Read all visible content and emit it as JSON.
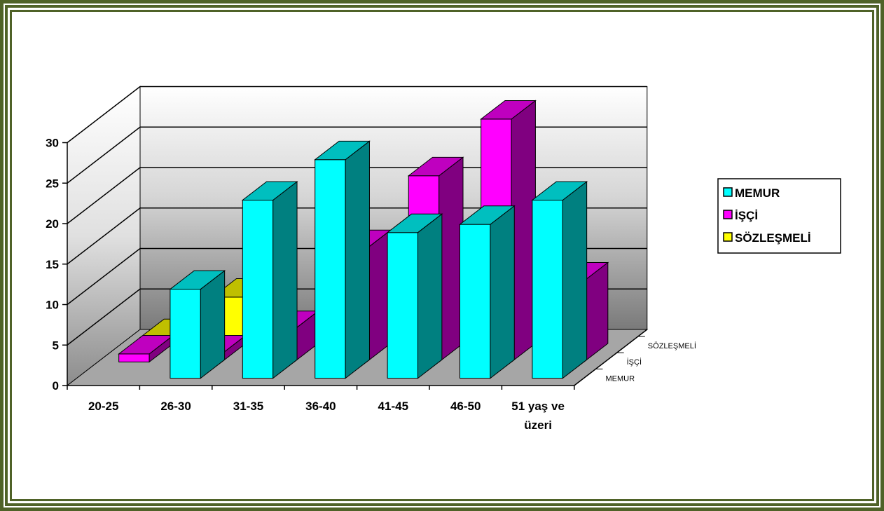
{
  "chart_data": {
    "type": "bar",
    "title": "",
    "xlabel": "",
    "ylabel": "",
    "ylim": [
      0,
      30
    ],
    "yticks": [
      "0",
      "5",
      "10",
      "15",
      "20",
      "25",
      "30"
    ],
    "grid": true,
    "legend_position": "right",
    "categories": [
      "20-25",
      "26-30",
      "31-35",
      "36-40",
      "41-45",
      "46-50",
      "51 yaş ve üzeri"
    ],
    "category_lines": [
      [
        "20-25"
      ],
      [
        "26-30"
      ],
      [
        "31-35"
      ],
      [
        "36-40"
      ],
      [
        "41-45"
      ],
      [
        "46-50"
      ],
      [
        "51 yaş ve",
        "üzeri"
      ]
    ],
    "depth_labels": [
      "MEMUR",
      "İŞÇİ",
      "SÖZLEŞMELİ"
    ],
    "series": [
      {
        "name": "MEMUR",
        "color": "#00ffff",
        "values": [
          0,
          11,
          22,
          27,
          18,
          19,
          22
        ]
      },
      {
        "name": "İŞÇİ",
        "color": "#ff00ff",
        "values": [
          1,
          1,
          4,
          14,
          23,
          30,
          10
        ]
      },
      {
        "name": "SÖZLEŞMELİ",
        "color": "#ffff00",
        "values": [
          1,
          6,
          0,
          0,
          0,
          0,
          0
        ]
      }
    ]
  }
}
